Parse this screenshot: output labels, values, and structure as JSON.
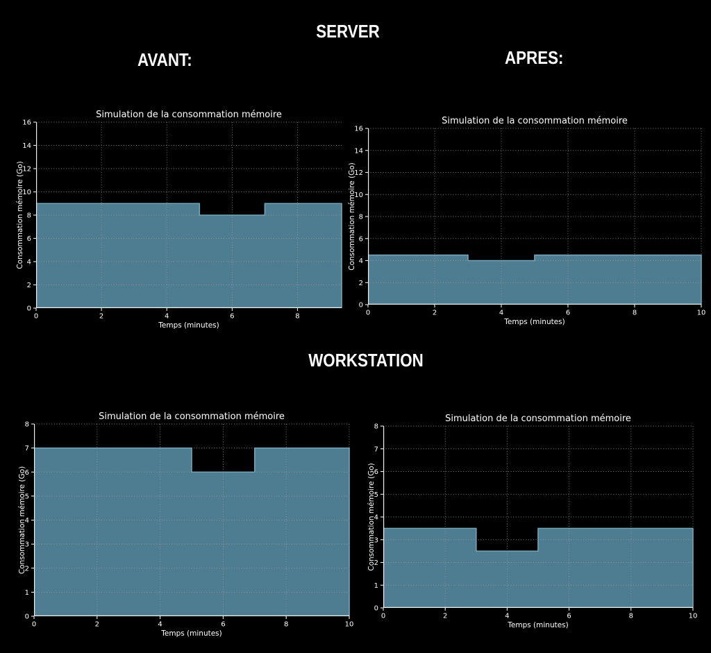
{
  "header": {
    "server_title": "SERVER",
    "avant_label": "AVANT:",
    "apres_label": "APRES:",
    "workstation_title": "WORKSTATION"
  },
  "colors": {
    "background": "#000000",
    "text": "#ffffff",
    "axis": "#f0f0f0",
    "grid": "#9c9c9c",
    "area_fill": "#4E7C90",
    "area_edge": "#74A4B6"
  },
  "chart_data": [
    {
      "id": "server-avant",
      "type": "area",
      "title": "Simulation de la consommation mémoire",
      "xlabel": "Temps (minutes)",
      "ylabel": "Consommation mémoire (Go)",
      "xlim": [
        0,
        9.35
      ],
      "ylim": [
        0,
        16
      ],
      "xticks": [
        0,
        2,
        4,
        6,
        8
      ],
      "yticks": [
        0,
        2,
        4,
        6,
        8,
        10,
        12,
        14,
        16
      ],
      "grid": true,
      "legend": false,
      "segments": [
        {
          "from": 0,
          "to": 5,
          "value": 9
        },
        {
          "from": 5,
          "to": 7,
          "value": 8
        },
        {
          "from": 7,
          "to": 9.35,
          "value": 9
        }
      ]
    },
    {
      "id": "server-apres",
      "type": "area",
      "title": "Simulation de la consommation mémoire",
      "xlabel": "Temps (minutes)",
      "ylabel": "Consommation mémoire (Go)",
      "xlim": [
        0,
        10
      ],
      "ylim": [
        0,
        16
      ],
      "xticks": [
        0,
        2,
        4,
        6,
        8,
        10
      ],
      "yticks": [
        0,
        2,
        4,
        6,
        8,
        10,
        12,
        14,
        16
      ],
      "grid": true,
      "legend": false,
      "segments": [
        {
          "from": 0,
          "to": 3,
          "value": 4.5
        },
        {
          "from": 3,
          "to": 5,
          "value": 4
        },
        {
          "from": 5,
          "to": 10,
          "value": 4.5
        }
      ]
    },
    {
      "id": "workstation-avant",
      "type": "area",
      "title": "Simulation de la consommation mémoire",
      "xlabel": "Temps (minutes)",
      "ylabel": "Consommation mémoire (Go)",
      "xlim": [
        0,
        10
      ],
      "ylim": [
        0,
        8
      ],
      "xticks": [
        0,
        2,
        4,
        6,
        8,
        10
      ],
      "yticks": [
        0,
        1,
        2,
        3,
        4,
        5,
        6,
        7,
        8
      ],
      "grid": true,
      "legend": false,
      "segments": [
        {
          "from": 0,
          "to": 5,
          "value": 7
        },
        {
          "from": 5,
          "to": 7,
          "value": 6
        },
        {
          "from": 7,
          "to": 10,
          "value": 7
        }
      ]
    },
    {
      "id": "workstation-apres",
      "type": "area",
      "title": "Simulation de la consommation mémoire",
      "xlabel": "Temps (minutes)",
      "ylabel": "Consommation mémoire (Go)",
      "xlim": [
        0,
        10
      ],
      "ylim": [
        0,
        8
      ],
      "xticks": [
        0,
        2,
        4,
        6,
        8,
        10
      ],
      "yticks": [
        0,
        1,
        2,
        3,
        4,
        5,
        6,
        7,
        8
      ],
      "grid": true,
      "legend": false,
      "segments": [
        {
          "from": 0,
          "to": 3,
          "value": 3.5
        },
        {
          "from": 3,
          "to": 5,
          "value": 2.5
        },
        {
          "from": 5,
          "to": 10,
          "value": 3.5
        }
      ]
    }
  ]
}
